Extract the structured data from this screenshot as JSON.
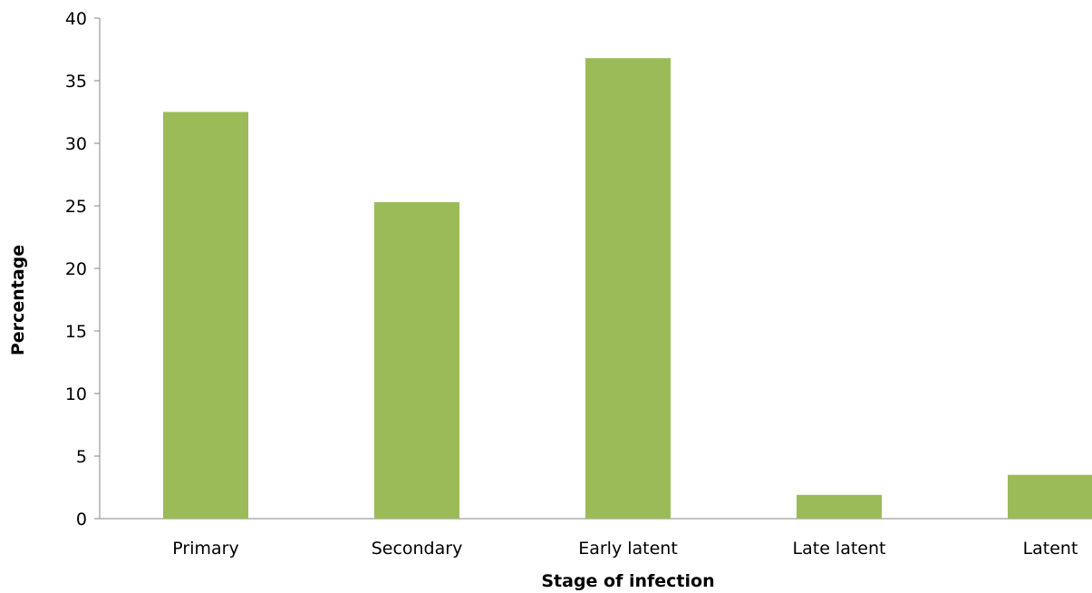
{
  "chart_data": {
    "type": "bar",
    "title": "",
    "xlabel": "Stage of infection",
    "ylabel": "Percentage",
    "categories": [
      "Primary",
      "Secondary",
      "Early latent",
      "Late latent",
      "Latent"
    ],
    "series": [
      {
        "values": [
          32.5,
          25.3,
          36.8,
          1.9,
          3.5
        ]
      }
    ],
    "ylim": [
      0,
      40
    ],
    "yticks": [
      "0",
      "5",
      "10",
      "15",
      "20",
      "25",
      "30",
      "35",
      "40"
    ],
    "grid": false,
    "legend": "none",
    "bar_color": "#9BBB59"
  }
}
